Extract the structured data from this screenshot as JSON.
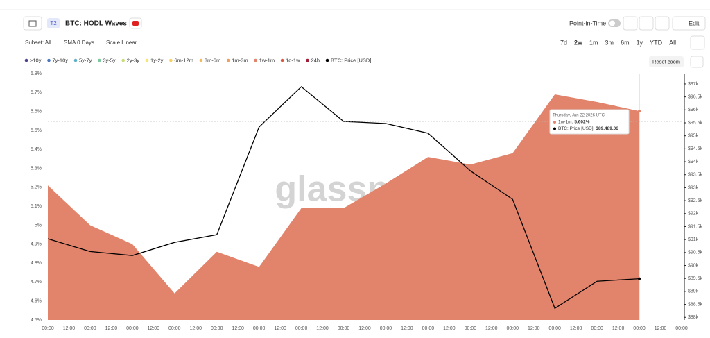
{
  "header": {
    "badge": "T2",
    "title": "BTC: HODL Waves",
    "point_in_time": "Point-in-Time",
    "edit": "Edit"
  },
  "toolbar": {
    "subset": "Subset: All",
    "sma": "SMA 0 Days",
    "scale": "Scale Linear",
    "ranges": [
      "7d",
      "2w",
      "1m",
      "3m",
      "6m",
      "1y",
      "YTD",
      "All"
    ],
    "reset_zoom": "Reset zoom"
  },
  "watermark": "glassnode",
  "tooltip": {
    "date": "Thursday, Jan 22 2026 UTC",
    "rows": [
      {
        "label": "1w-1m:",
        "value": "5.602%"
      },
      {
        "label": "BTC: Price [USD]:",
        "value": "$89,489.06"
      }
    ]
  },
  "chart_data": {
    "type": "area",
    "x": [
      0,
      24,
      48,
      72,
      96,
      120,
      144,
      168,
      192,
      216,
      240,
      264,
      288,
      312,
      336
    ],
    "xlim": [
      0,
      360
    ],
    "xticks": [
      {
        "value": 0,
        "label": "00:00"
      },
      {
        "value": 12,
        "label": "12:00"
      },
      {
        "value": 24,
        "label": "00:00"
      },
      {
        "value": 36,
        "label": "12:00"
      },
      {
        "value": 48,
        "label": "00:00"
      },
      {
        "value": 60,
        "label": "12:00"
      },
      {
        "value": 72,
        "label": "00:00"
      },
      {
        "value": 84,
        "label": "12:00"
      },
      {
        "value": 96,
        "label": "00:00"
      },
      {
        "value": 108,
        "label": "12:00"
      },
      {
        "value": 120,
        "label": "00:00"
      },
      {
        "value": 132,
        "label": "12:00"
      },
      {
        "value": 144,
        "label": "00:00"
      },
      {
        "value": 156,
        "label": "12:00"
      },
      {
        "value": 168,
        "label": "00:00"
      },
      {
        "value": 180,
        "label": "12:00"
      },
      {
        "value": 192,
        "label": "00:00"
      },
      {
        "value": 204,
        "label": "12:00"
      },
      {
        "value": 216,
        "label": "00:00"
      },
      {
        "value": 228,
        "label": "12:00"
      },
      {
        "value": 240,
        "label": "00:00"
      },
      {
        "value": 252,
        "label": "12:00"
      },
      {
        "value": 264,
        "label": "00:00"
      },
      {
        "value": 276,
        "label": "12:00"
      },
      {
        "value": 288,
        "label": "00:00"
      },
      {
        "value": 300,
        "label": "12:00"
      },
      {
        "value": 312,
        "label": "00:00"
      },
      {
        "value": 324,
        "label": "12:00"
      },
      {
        "value": 336,
        "label": "00:00"
      },
      {
        "value": 348,
        "label": "12:00"
      },
      {
        "value": 360,
        "label": "00:00"
      }
    ],
    "ylim": [
      4.5,
      5.8
    ],
    "yticks": [
      {
        "value": 5.8,
        "label": "5.8%"
      },
      {
        "value": 5.7,
        "label": "5.7%"
      },
      {
        "value": 5.6,
        "label": "5.6%"
      },
      {
        "value": 5.5,
        "label": "5.5%"
      },
      {
        "value": 5.4,
        "label": "5.4%"
      },
      {
        "value": 5.3,
        "label": "5.3%"
      },
      {
        "value": 5.2,
        "label": "5.2%"
      },
      {
        "value": 5.1,
        "label": "5.1%"
      },
      {
        "value": 5,
        "label": "5%"
      },
      {
        "value": 4.9,
        "label": "4.9%"
      },
      {
        "value": 4.8,
        "label": "4.8%"
      },
      {
        "value": 4.7,
        "label": "4.7%"
      },
      {
        "value": 4.6,
        "label": "4.6%"
      },
      {
        "value": 4.5,
        "label": "4.5%"
      }
    ],
    "y2lim": [
      87900,
      97400
    ],
    "y2ticks": [
      {
        "value": 97000,
        "label": "$97k"
      },
      {
        "value": 96500,
        "label": "$96.5k"
      },
      {
        "value": 96000,
        "label": "$96k"
      },
      {
        "value": 95500,
        "label": "$95.5k"
      },
      {
        "value": 95000,
        "label": "$95k"
      },
      {
        "value": 94500,
        "label": "$94.5k"
      },
      {
        "value": 94000,
        "label": "$94k"
      },
      {
        "value": 93500,
        "label": "$93.5k"
      },
      {
        "value": 93000,
        "label": "$93k"
      },
      {
        "value": 92500,
        "label": "$92.5k"
      },
      {
        "value": 92000,
        "label": "$92k"
      },
      {
        "value": 91500,
        "label": "$91.5k"
      },
      {
        "value": 91000,
        "label": "$91k"
      },
      {
        "value": 90500,
        "label": "$90.5k"
      },
      {
        "value": 90000,
        "label": "$90k"
      },
      {
        "value": 89500,
        "label": "$89.5k"
      },
      {
        "value": 89000,
        "label": "$89k"
      },
      {
        "value": 88500,
        "label": "$88.5k"
      },
      {
        "value": 88000,
        "label": "$88k"
      }
    ],
    "grid": false,
    "series": [
      {
        "name": ">10y",
        "color": "#4b3f91",
        "visible": false
      },
      {
        "name": "7y-10y",
        "color": "#4a78c0",
        "visible": false
      },
      {
        "name": "5y-7y",
        "color": "#5cb0c8",
        "visible": false
      },
      {
        "name": "3y-5y",
        "color": "#7cc6a0",
        "visible": false
      },
      {
        "name": "2y-3y",
        "color": "#c8dc7a",
        "visible": false
      },
      {
        "name": "1y-2y",
        "color": "#f3e676",
        "visible": false
      },
      {
        "name": "6m-12m",
        "color": "#f6d060",
        "visible": false
      },
      {
        "name": "3m-6m",
        "color": "#f4b860",
        "visible": false
      },
      {
        "name": "1m-3m",
        "color": "#eea060",
        "visible": false
      },
      {
        "name": "1w-1m",
        "color": "#e2836b",
        "visible": true,
        "type": "area",
        "axis": "y",
        "values": [
          5.21,
          5.0,
          4.9,
          4.64,
          4.86,
          4.78,
          5.09,
          5.09,
          5.22,
          5.36,
          5.32,
          5.38,
          5.69,
          5.65,
          5.602
        ]
      },
      {
        "name": "1d-1w",
        "color": "#d5583e",
        "visible": false
      },
      {
        "name": "24h",
        "color": "#a0203a",
        "visible": false
      },
      {
        "name": "BTC: Price [USD]",
        "color": "#000000",
        "visible": true,
        "type": "line",
        "axis": "y2",
        "values": [
          91030,
          90540,
          90384,
          90892,
          91187,
          95339,
          96893,
          95553,
          95473,
          95098,
          93651,
          92553,
          88347,
          89392,
          89489.06
        ]
      }
    ]
  }
}
